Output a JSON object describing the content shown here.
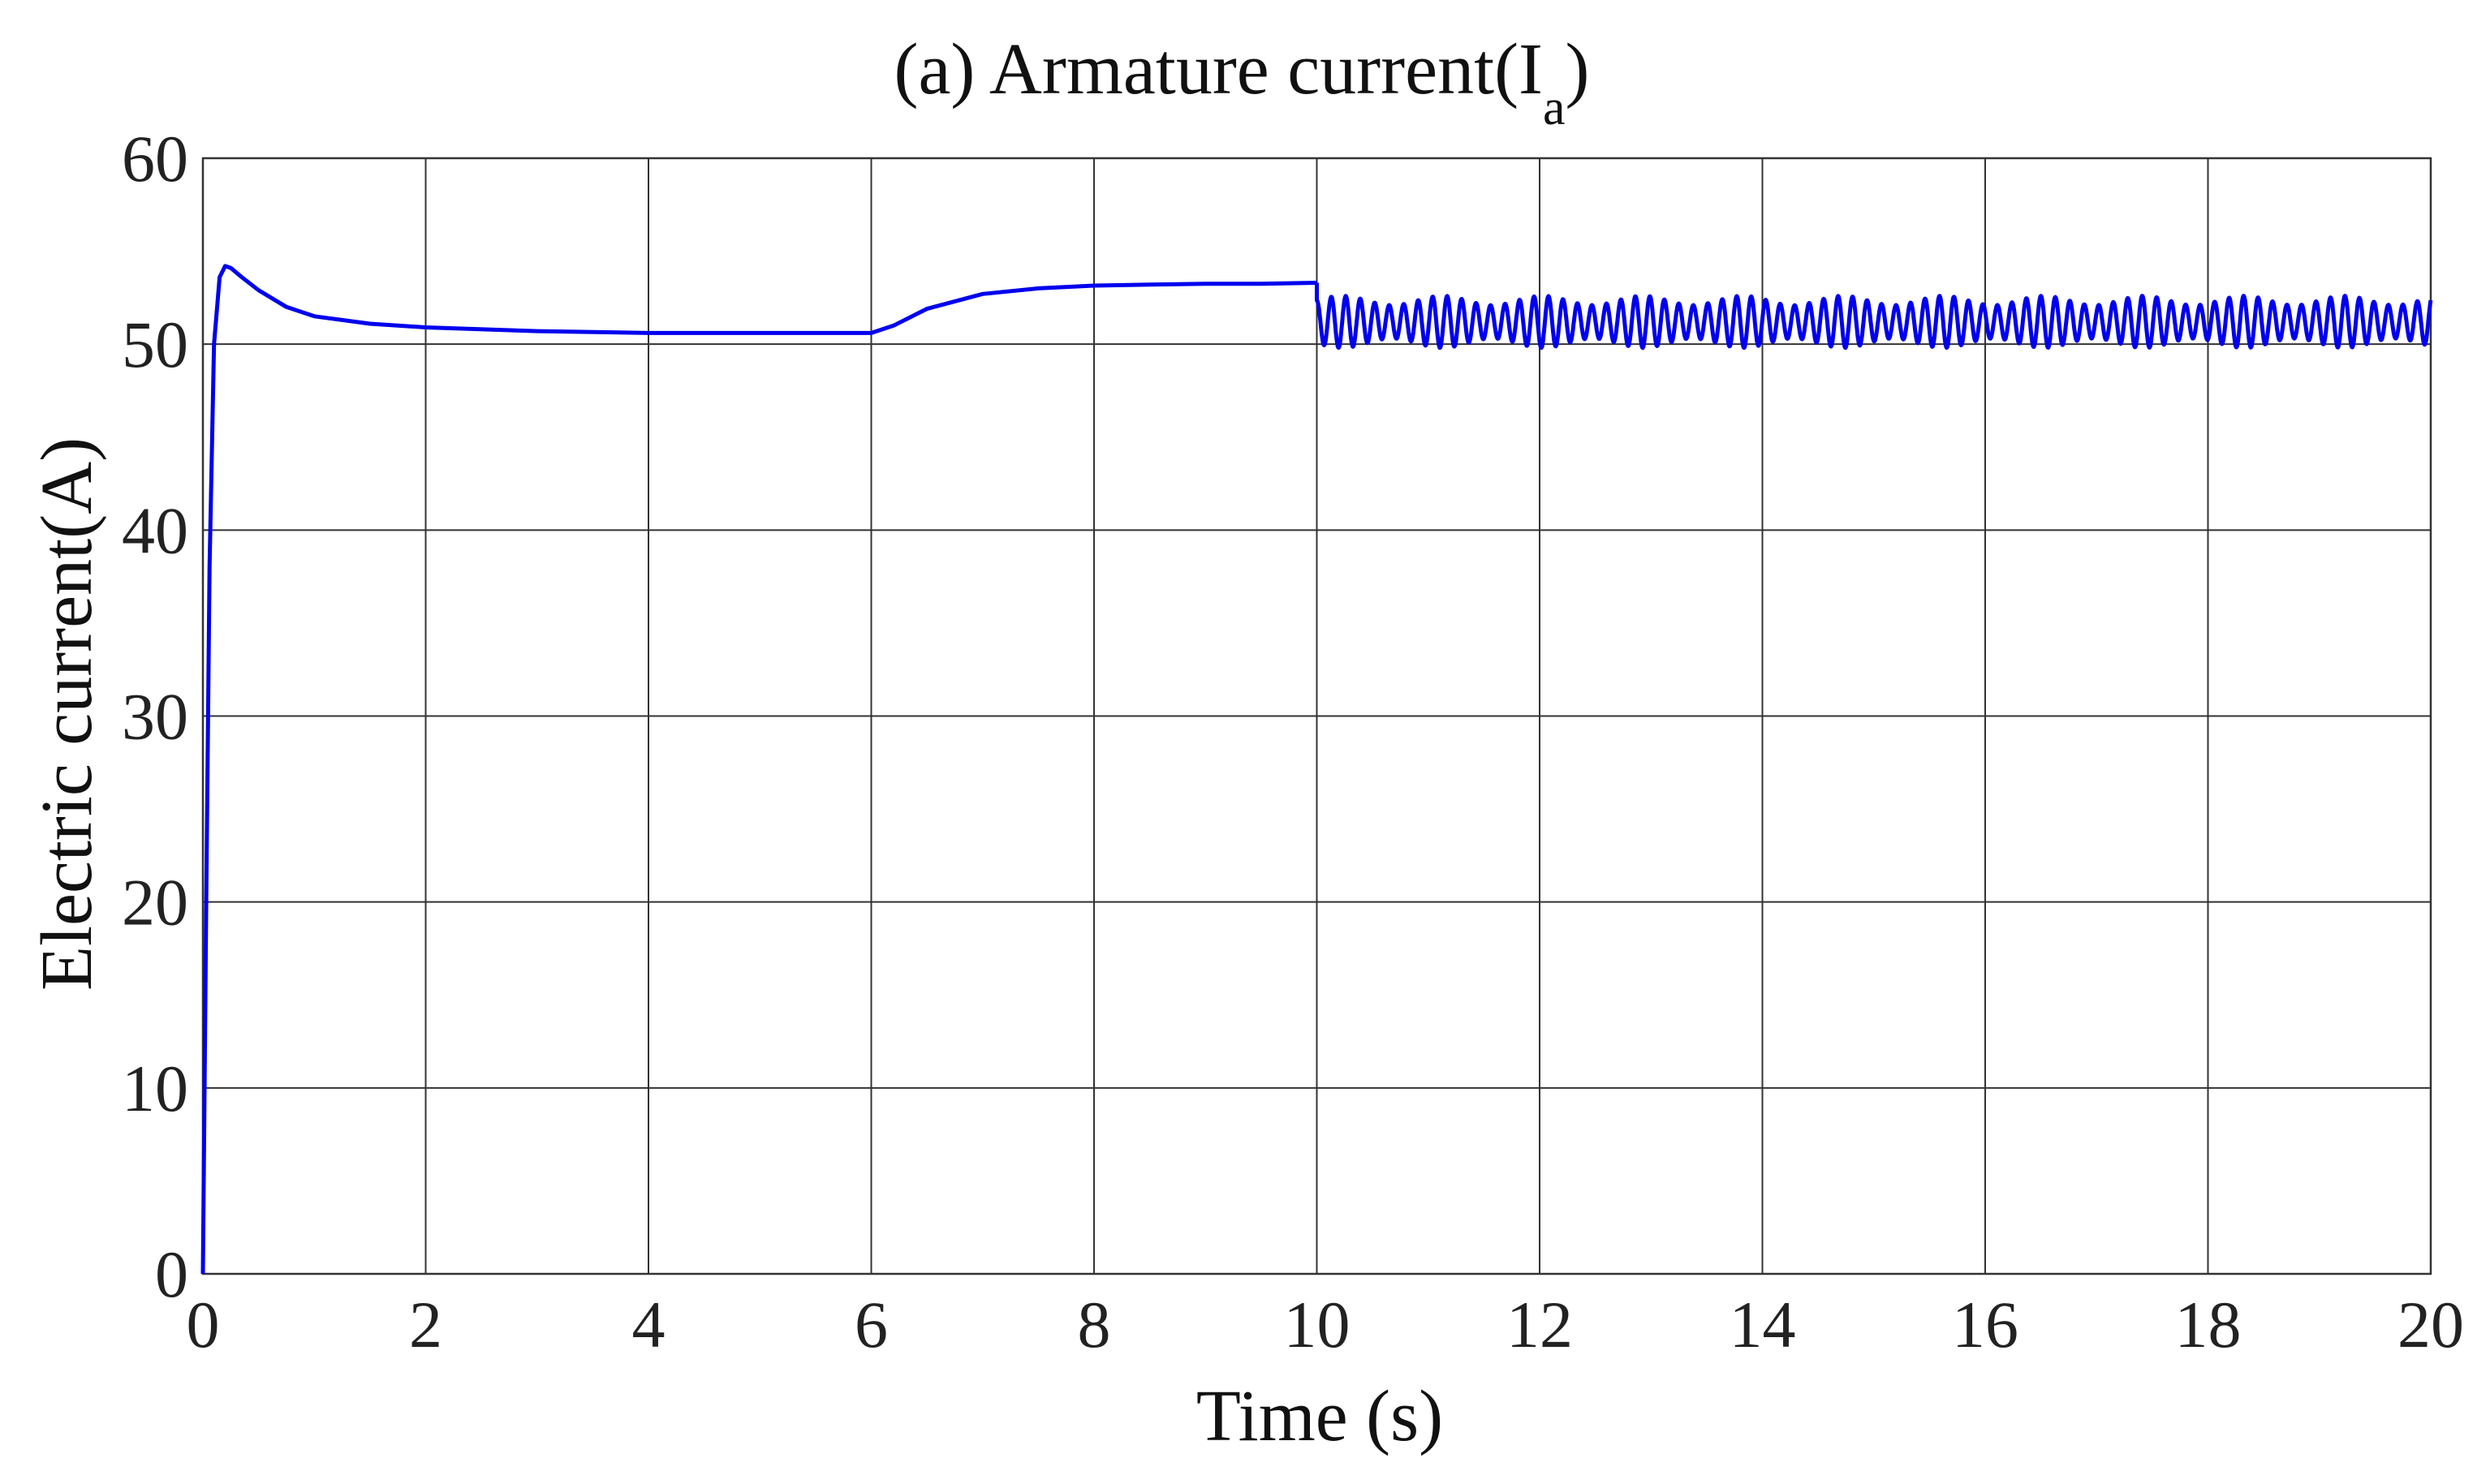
{
  "chart_data": {
    "type": "line",
    "title": "(a) Armature current(I",
    "title_subscript": "a",
    "title_suffix": ")",
    "xlabel": "Time (s)",
    "ylabel": "Electric current(A)",
    "xlim": [
      0,
      20
    ],
    "ylim": [
      0,
      60
    ],
    "xticks": [
      "0",
      "2",
      "4",
      "6",
      "8",
      "10",
      "12",
      "14",
      "16",
      "18",
      "20"
    ],
    "yticks": [
      "0",
      "10",
      "20",
      "30",
      "40",
      "50",
      "60"
    ],
    "grid": true,
    "legend": "none",
    "series": [
      {
        "color": "#0000ee",
        "x": [
          0,
          0.03,
          0.06,
          0.1,
          0.15,
          0.2,
          0.25,
          0.35,
          0.5,
          0.75,
          1.0,
          1.5,
          2.0,
          3.0,
          4.0,
          5.0,
          6.0,
          6.2,
          6.5,
          7.0,
          7.5,
          8.0,
          8.5,
          9.0,
          9.5,
          10.0
        ],
        "y": [
          0,
          20,
          38,
          50,
          53.6,
          54.2,
          54.1,
          53.6,
          52.9,
          52.0,
          51.5,
          51.1,
          50.9,
          50.7,
          50.6,
          50.6,
          50.6,
          51.0,
          51.9,
          52.7,
          53.0,
          53.15,
          53.2,
          53.25,
          53.25,
          53.3
        ]
      },
      {
        "color": "#0000ee",
        "x_start": 10.0,
        "x_end": 20.0,
        "mean": 51.1,
        "amplitude_min": 49.8,
        "amplitude_max": 52.6,
        "oscillation_period": 0.13
      }
    ]
  }
}
